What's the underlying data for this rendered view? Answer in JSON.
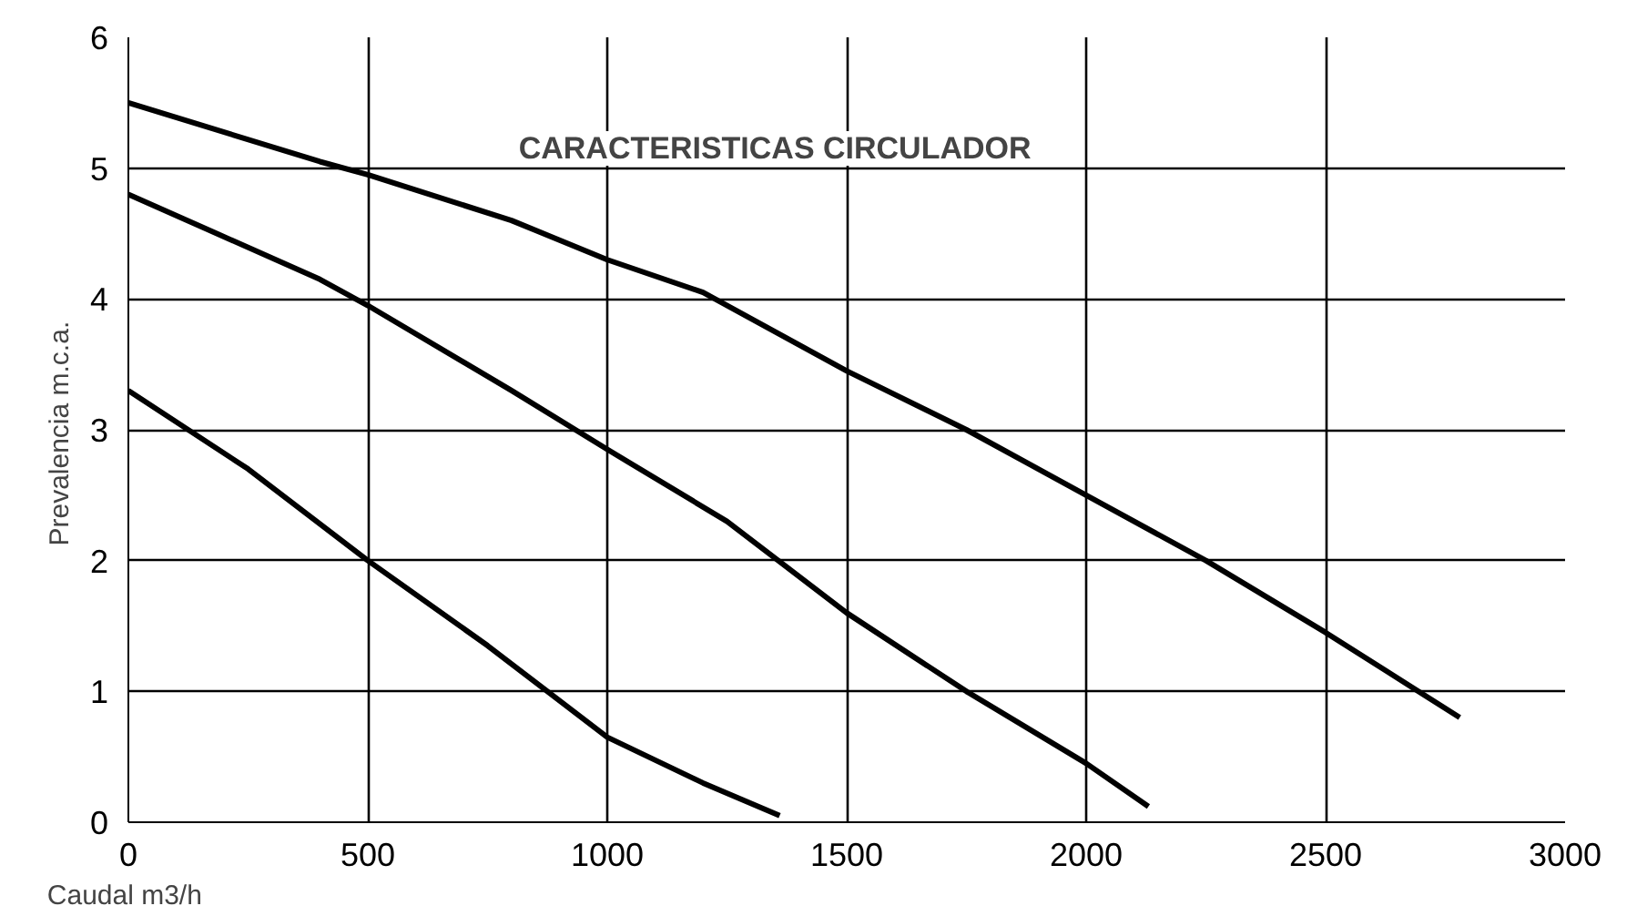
{
  "chart_data": {
    "type": "line",
    "title": "CARACTERISTICAS CIRCULADOR",
    "xlabel": "Caudal  m3/h",
    "ylabel": "Prevalencia  m.c.a.",
    "xlim": [
      0,
      3000
    ],
    "ylim": [
      0,
      6
    ],
    "xticks": [
      0,
      500,
      1000,
      1500,
      2000,
      2500,
      3000
    ],
    "yticks": [
      0,
      1,
      2,
      3,
      4,
      5,
      6
    ],
    "grid": true,
    "marker": "none",
    "line_style": "solid",
    "series": [
      {
        "color": "#000000",
        "x": [
          0,
          400,
          500,
          800,
          1000,
          1200,
          1500,
          1750,
          2000,
          2250,
          2500,
          2780
        ],
        "values": [
          5.5,
          5.05,
          4.95,
          4.6,
          4.3,
          4.05,
          3.45,
          3.0,
          2.5,
          2.0,
          1.45,
          0.8
        ]
      },
      {
        "color": "#000000",
        "x": [
          0,
          400,
          500,
          800,
          1000,
          1250,
          1500,
          1750,
          2000,
          2130
        ],
        "values": [
          4.8,
          4.15,
          3.95,
          3.3,
          2.85,
          2.3,
          1.6,
          1.0,
          0.45,
          0.12
        ]
      },
      {
        "color": "#000000",
        "x": [
          0,
          250,
          500,
          750,
          1000,
          1200,
          1360
        ],
        "values": [
          3.3,
          2.7,
          2.0,
          1.35,
          0.65,
          0.3,
          0.05
        ]
      }
    ]
  }
}
